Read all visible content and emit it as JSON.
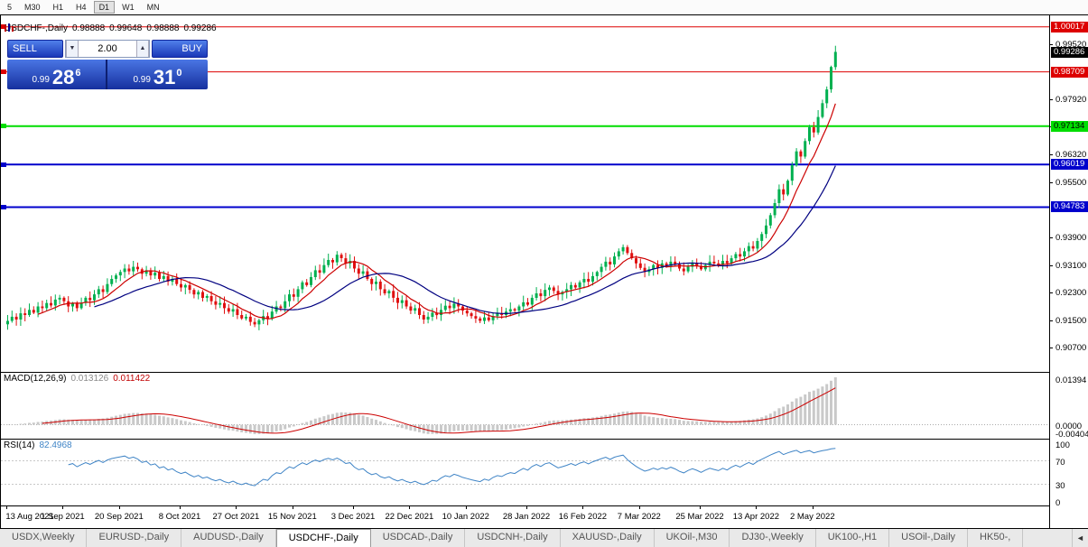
{
  "toolbar": {
    "items": [
      {
        "label": "5",
        "active": false
      },
      {
        "label": "M30",
        "active": false
      },
      {
        "label": "H1",
        "active": false
      },
      {
        "label": "H4",
        "active": false
      },
      {
        "label": "D1",
        "active": true
      },
      {
        "label": "W1",
        "active": false
      },
      {
        "label": "MN",
        "active": false
      }
    ]
  },
  "header": {
    "symbol": "USDCHF-,Daily",
    "open": "0.98888",
    "high": "0.99648",
    "low": "0.98888",
    "close": "0.99286"
  },
  "trade_panel": {
    "sell_label": "SELL",
    "buy_label": "BUY",
    "volume": "2.00",
    "sell_price": {
      "small": "0.99",
      "big": "28",
      "sup": "6"
    },
    "buy_price": {
      "small": "0.99",
      "big": "31",
      "sup": "0"
    }
  },
  "price_axis": {
    "labels": [
      "0.99520",
      "0.97920",
      "0.97120",
      "0.96320",
      "0.95500",
      "0.93900",
      "0.93100",
      "0.92300",
      "0.91500",
      "0.90700"
    ]
  },
  "macd": {
    "label": "MACD(12,26,9)",
    "value_main": "0.013126",
    "value_signal": "0.011422",
    "axis_labels": [
      "0.01394",
      "0.0000",
      "-0.00404"
    ]
  },
  "rsi": {
    "label": "RSI(14)",
    "value": "82.4968",
    "axis_labels": [
      "100",
      "70",
      "30",
      "0"
    ],
    "levels": [
      70,
      30
    ]
  },
  "tabbar": {
    "scroll_left": "◄",
    "tabs": [
      {
        "label": "USDX,Weekly",
        "active": false
      },
      {
        "label": "EURUSD-,Daily",
        "active": false
      },
      {
        "label": "AUDUSD-,Daily",
        "active": false
      },
      {
        "label": "USDCHF-,Daily",
        "active": true
      },
      {
        "label": "USDCAD-,Daily",
        "active": false
      },
      {
        "label": "USDCNH-,Daily",
        "active": false
      },
      {
        "label": "XAUUSD-,Daily",
        "active": false
      },
      {
        "label": "UKOil-,M30",
        "active": false
      },
      {
        "label": "DJ30-,Weekly",
        "active": false
      },
      {
        "label": "UK100-,H1",
        "active": false
      },
      {
        "label": "USOil-,Daily",
        "active": false
      },
      {
        "label": "HK50-,",
        "active": false
      }
    ]
  },
  "colors": {
    "up": "#00b050",
    "down": "#e01010",
    "ma_fast": "#cc0000",
    "ma_slow": "#000080",
    "macd_hist": "#c9c9c9",
    "macd_signal": "#cc0000",
    "rsi_line": "#3f84c6"
  },
  "chart_data": {
    "type": "candlestick",
    "title": "USDCHF-,Daily",
    "y_range": [
      0.9,
      1.0035
    ],
    "x_axis_labels": [
      {
        "text": "13 Aug 2021",
        "index": 0
      },
      {
        "text": "1 Sep 2021",
        "index": 13
      },
      {
        "text": "20 Sep 2021",
        "index": 26
      },
      {
        "text": "8 Oct 2021",
        "index": 40
      },
      {
        "text": "27 Oct 2021",
        "index": 53
      },
      {
        "text": "15 Nov 2021",
        "index": 66
      },
      {
        "text": "3 Dec 2021",
        "index": 80
      },
      {
        "text": "22 Dec 2021",
        "index": 93
      },
      {
        "text": "10 Jan 2022",
        "index": 106
      },
      {
        "text": "28 Jan 2022",
        "index": 120
      },
      {
        "text": "16 Feb 2022",
        "index": 133
      },
      {
        "text": "7 Mar 2022",
        "index": 146
      },
      {
        "text": "25 Mar 2022",
        "index": 160
      },
      {
        "text": "13 Apr 2022",
        "index": 173
      },
      {
        "text": "2 May 2022",
        "index": 186
      }
    ],
    "hlines": [
      {
        "price": 1.00017,
        "color": "#dd0000",
        "width": 1,
        "label": "1.00017",
        "label_fg": "#ffffff"
      },
      {
        "price": 0.98709,
        "color": "#dd0000",
        "width": 1,
        "label": "0.98709",
        "label_fg": "#ffffff"
      },
      {
        "price": 0.97134,
        "color": "#00dd00",
        "width": 2,
        "label": "0.97134",
        "label_fg": "#000000"
      },
      {
        "price": 0.96019,
        "color": "#0000cc",
        "width": 2,
        "label": "0.96019",
        "label_fg": "#ffffff"
      },
      {
        "price": 0.94783,
        "color": "#0000cc",
        "width": 2,
        "label": "0.94783",
        "label_fg": "#ffffff"
      }
    ],
    "current_price": {
      "price": 0.99286,
      "label": "0.99286",
      "bg": "#000000",
      "fg": "#ffffff"
    },
    "indicators": {
      "ma_fast_period": 8,
      "ma_slow_period": 21,
      "macd_params": [
        12,
        26,
        9
      ],
      "rsi_period": 14
    },
    "closes": [
      0.9148,
      0.916,
      0.9152,
      0.917,
      0.9165,
      0.918,
      0.9172,
      0.919,
      0.9185,
      0.92,
      0.9193,
      0.921,
      0.9215,
      0.9205,
      0.919,
      0.9198,
      0.9185,
      0.92,
      0.9215,
      0.9208,
      0.9225,
      0.924,
      0.9232,
      0.9255,
      0.927,
      0.928,
      0.929,
      0.93,
      0.9292,
      0.9305,
      0.9298,
      0.9285,
      0.9295,
      0.928,
      0.9288,
      0.927,
      0.9278,
      0.9262,
      0.927,
      0.9255,
      0.9245,
      0.9252,
      0.9238,
      0.9225,
      0.9232,
      0.9215,
      0.922,
      0.9205,
      0.9195,
      0.92,
      0.9185,
      0.9175,
      0.9182,
      0.9165,
      0.9155,
      0.916,
      0.9145,
      0.9138,
      0.915,
      0.9162,
      0.9155,
      0.9175,
      0.919,
      0.9185,
      0.9205,
      0.9225,
      0.9218,
      0.924,
      0.926,
      0.9252,
      0.9275,
      0.9295,
      0.9288,
      0.931,
      0.9325,
      0.9318,
      0.934,
      0.933,
      0.9315,
      0.9322,
      0.93,
      0.9285,
      0.9292,
      0.927,
      0.9255,
      0.9262,
      0.924,
      0.9228,
      0.9235,
      0.9215,
      0.92,
      0.9208,
      0.919,
      0.9178,
      0.9185,
      0.9165,
      0.9152,
      0.916,
      0.9172,
      0.9165,
      0.918,
      0.9192,
      0.9185,
      0.9198,
      0.919,
      0.9178,
      0.917,
      0.9162,
      0.9155,
      0.9148,
      0.9158,
      0.915,
      0.9162,
      0.917,
      0.9165,
      0.9175,
      0.9182,
      0.9178,
      0.919,
      0.9202,
      0.9195,
      0.9215,
      0.9228,
      0.922,
      0.9238,
      0.9245,
      0.9235,
      0.9225,
      0.9232,
      0.924,
      0.9252,
      0.9245,
      0.926,
      0.927,
      0.9262,
      0.9278,
      0.929,
      0.9305,
      0.932,
      0.9312,
      0.9335,
      0.935,
      0.9362,
      0.9345,
      0.933,
      0.9315,
      0.9302,
      0.929,
      0.9298,
      0.931,
      0.9302,
      0.9315,
      0.9308,
      0.932,
      0.9312,
      0.93,
      0.9292,
      0.9305,
      0.9315,
      0.9308,
      0.9298,
      0.931,
      0.932,
      0.9315,
      0.931,
      0.9322,
      0.9315,
      0.933,
      0.9342,
      0.9335,
      0.935,
      0.9365,
      0.9358,
      0.938,
      0.94,
      0.9425,
      0.9455,
      0.949,
      0.953,
      0.9515,
      0.9555,
      0.96,
      0.964,
      0.9625,
      0.967,
      0.971,
      0.9695,
      0.974,
      0.978,
      0.982,
      0.9885,
      0.9929
    ]
  }
}
